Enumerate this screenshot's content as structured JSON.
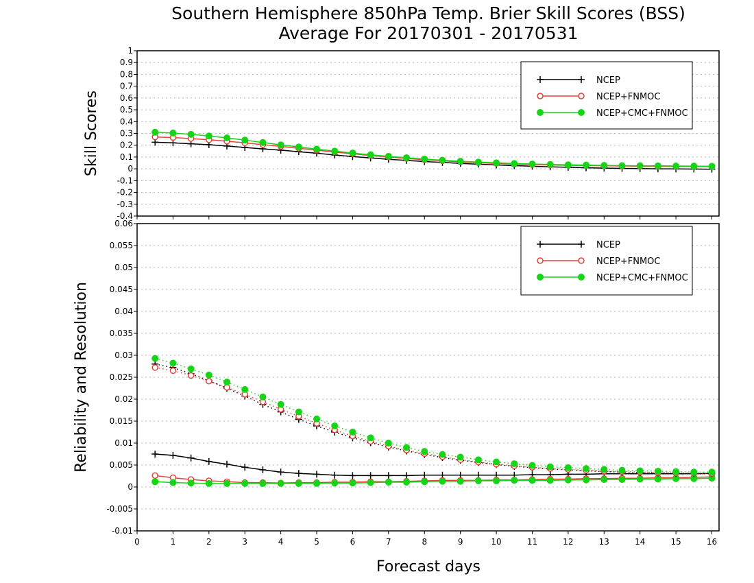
{
  "title": "Southern Hemisphere 850hPa Temp. Brier Skill Scores (BSS)",
  "subtitle": "Average For 20170301 - 20170531",
  "xlabel": "Forecast days",
  "colors": {
    "NCEP": "#000000",
    "NCEP+FNMOC": "#e8403a",
    "NCEP+CMC+FNMOC": "#16d416"
  },
  "chart_data": [
    {
      "type": "line",
      "ylabel": "Skill Scores",
      "xlim": [
        0,
        16.2
      ],
      "ylim": [
        -0.4,
        1
      ],
      "grid": true,
      "legend_position": "top-right",
      "xticks": [
        0,
        1,
        2,
        3,
        4,
        5,
        6,
        7,
        8,
        9,
        10,
        11,
        12,
        13,
        14,
        15,
        16
      ],
      "xtick_labels": [
        "0",
        "1",
        "2",
        "3",
        "4",
        "5",
        "6",
        "7",
        "8",
        "9",
        "10",
        "11",
        "12",
        "13",
        "14",
        "15",
        "16"
      ],
      "yticks": [
        -0.4,
        -0.3,
        -0.2,
        -0.1,
        0,
        0.1,
        0.2,
        0.3,
        0.4,
        0.5,
        0.6,
        0.7,
        0.8,
        0.9,
        1
      ],
      "ytick_labels": [
        "-0.4",
        "-0.3",
        "-0.2",
        "-0.1",
        "0",
        "0.1",
        "0.2",
        "0.3",
        "0.4",
        "0.5",
        "0.6",
        "0.7",
        "0.8",
        "0.9",
        "1"
      ],
      "x": [
        0.5,
        1,
        1.5,
        2,
        2.5,
        3,
        3.5,
        4,
        4.5,
        5,
        5.5,
        6,
        6.5,
        7,
        7.5,
        8,
        8.5,
        9,
        9.5,
        10,
        10.5,
        11,
        11.5,
        12,
        12.5,
        13,
        13.5,
        14,
        14.5,
        15,
        15.5,
        16
      ],
      "series": [
        {
          "name": "NCEP",
          "marker": "plus",
          "values": [
            0.225,
            0.22,
            0.212,
            0.204,
            0.193,
            0.181,
            0.169,
            0.158,
            0.145,
            0.132,
            0.117,
            0.104,
            0.092,
            0.081,
            0.071,
            0.062,
            0.054,
            0.046,
            0.039,
            0.033,
            0.027,
            0.022,
            0.017,
            0.013,
            0.009,
            0.006,
            0.004,
            0.002,
            0.0,
            -0.001,
            -0.002,
            -0.003
          ]
        },
        {
          "name": "NCEP+FNMOC",
          "marker": "open-circle",
          "values": [
            0.27,
            0.265,
            0.256,
            0.246,
            0.234,
            0.22,
            0.205,
            0.19,
            0.174,
            0.158,
            0.142,
            0.127,
            0.113,
            0.1,
            0.088,
            0.077,
            0.068,
            0.059,
            0.052,
            0.046,
            0.04,
            0.036,
            0.033,
            0.03,
            0.028,
            0.026,
            0.024,
            0.022,
            0.021,
            0.02,
            0.019,
            0.018
          ]
        },
        {
          "name": "NCEP+CMC+FNMOC",
          "marker": "filled-circle",
          "values": [
            0.31,
            0.303,
            0.292,
            0.278,
            0.262,
            0.243,
            0.223,
            0.203,
            0.185,
            0.167,
            0.15,
            0.134,
            0.119,
            0.106,
            0.094,
            0.083,
            0.073,
            0.064,
            0.057,
            0.051,
            0.045,
            0.041,
            0.037,
            0.034,
            0.032,
            0.029,
            0.027,
            0.026,
            0.025,
            0.024,
            0.023,
            0.022
          ]
        }
      ]
    },
    {
      "type": "line",
      "ylabel": "Reliability and Resolution",
      "xlim": [
        0,
        16.2
      ],
      "ylim": [
        -0.01,
        0.06
      ],
      "grid": true,
      "legend_position": "top-right",
      "xticks": [
        0,
        1,
        2,
        3,
        4,
        5,
        6,
        7,
        8,
        9,
        10,
        11,
        12,
        13,
        14,
        15,
        16
      ],
      "xtick_labels": [
        "0",
        "1",
        "2",
        "3",
        "4",
        "5",
        "6",
        "7",
        "8",
        "9",
        "10",
        "11",
        "12",
        "13",
        "14",
        "15",
        "16"
      ],
      "yticks": [
        -0.01,
        -0.005,
        0,
        0.005,
        0.01,
        0.015,
        0.02,
        0.025,
        0.03,
        0.035,
        0.04,
        0.045,
        0.05,
        0.055,
        0.06
      ],
      "ytick_labels": [
        "-0.01",
        "-0.005",
        "0",
        "0.005",
        "0.01",
        "0.015",
        "0.02",
        "0.025",
        "0.03",
        "0.035",
        "0.04",
        "0.045",
        "0.05",
        "0.055",
        "0.06"
      ],
      "x": [
        0.5,
        1,
        1.5,
        2,
        2.5,
        3,
        3.5,
        4,
        4.5,
        5,
        5.5,
        6,
        6.5,
        7,
        7.5,
        8,
        8.5,
        9,
        9.5,
        10,
        10.5,
        11,
        11.5,
        12,
        12.5,
        13,
        13.5,
        14,
        14.5,
        15,
        15.5,
        16
      ],
      "series": [
        {
          "name": "NCEP",
          "kind": "reliability",
          "style": "solid",
          "marker": "plus",
          "values": [
            0.0075,
            0.0072,
            0.0066,
            0.0058,
            0.0052,
            0.0045,
            0.0039,
            0.0034,
            0.0031,
            0.0029,
            0.0027,
            0.0026,
            0.0026,
            0.0026,
            0.0026,
            0.0027,
            0.0027,
            0.0027,
            0.0027,
            0.0027,
            0.0027,
            0.0028,
            0.0028,
            0.0029,
            0.0029,
            0.003,
            0.003,
            0.003,
            0.003,
            0.003,
            0.003,
            0.0031
          ]
        },
        {
          "name": "NCEP+FNMOC",
          "kind": "reliability",
          "style": "solid",
          "marker": "open-circle",
          "values": [
            0.0026,
            0.0021,
            0.0017,
            0.0014,
            0.0012,
            0.001,
            0.001,
            0.0009,
            0.001,
            0.001,
            0.0011,
            0.0011,
            0.0012,
            0.0012,
            0.0013,
            0.0014,
            0.0015,
            0.0015,
            0.0015,
            0.0016,
            0.0016,
            0.0017,
            0.0018,
            0.0018,
            0.0019,
            0.0019,
            0.002,
            0.002,
            0.0021,
            0.0021,
            0.0022,
            0.0023
          ]
        },
        {
          "name": "NCEP+CMC+FNMOC",
          "kind": "reliability",
          "style": "solid",
          "marker": "filled-circle",
          "values": [
            0.0012,
            0.001,
            0.0009,
            0.0008,
            0.0008,
            0.0008,
            0.0008,
            0.0008,
            0.0008,
            0.0008,
            0.0009,
            0.0009,
            0.001,
            0.0011,
            0.0011,
            0.0012,
            0.0013,
            0.0013,
            0.0014,
            0.0014,
            0.0015,
            0.0015,
            0.0015,
            0.0016,
            0.0016,
            0.0017,
            0.0017,
            0.0018,
            0.0018,
            0.0019,
            0.0019,
            0.002
          ]
        },
        {
          "name": "NCEP",
          "kind": "resolution",
          "style": "dotted",
          "marker": "plus",
          "values": [
            0.028,
            0.0272,
            0.0258,
            0.0242,
            0.0225,
            0.0207,
            0.0188,
            0.0171,
            0.0154,
            0.0139,
            0.0125,
            0.0112,
            0.0101,
            0.0091,
            0.0082,
            0.0074,
            0.0067,
            0.0061,
            0.0056,
            0.0051,
            0.0047,
            0.0044,
            0.0041,
            0.0039,
            0.0037,
            0.0035,
            0.0034,
            0.0033,
            0.0032,
            0.0031,
            0.003,
            0.003
          ]
        },
        {
          "name": "NCEP+FNMOC",
          "kind": "resolution",
          "style": "dotted",
          "marker": "open-circle",
          "values": [
            0.0272,
            0.0265,
            0.0254,
            0.0241,
            0.0227,
            0.0211,
            0.0194,
            0.0177,
            0.0161,
            0.0145,
            0.013,
            0.0116,
            0.0104,
            0.0093,
            0.0084,
            0.0076,
            0.0069,
            0.0062,
            0.0057,
            0.0052,
            0.0048,
            0.0045,
            0.0042,
            0.004,
            0.0038,
            0.0036,
            0.0035,
            0.0034,
            0.0033,
            0.0032,
            0.0032,
            0.0031
          ]
        },
        {
          "name": "NCEP+CMC+FNMOC",
          "kind": "resolution",
          "style": "dotted",
          "marker": "filled-circle",
          "values": [
            0.0293,
            0.0282,
            0.0269,
            0.0255,
            0.0239,
            0.0222,
            0.0205,
            0.0188,
            0.0171,
            0.0155,
            0.0139,
            0.0125,
            0.0112,
            0.01,
            0.009,
            0.0081,
            0.0074,
            0.0068,
            0.0062,
            0.0057,
            0.0053,
            0.0049,
            0.0046,
            0.0044,
            0.0042,
            0.004,
            0.0038,
            0.0037,
            0.0036,
            0.0035,
            0.0034,
            0.0034
          ]
        }
      ]
    }
  ],
  "legends": [
    {
      "entries": [
        {
          "label": "NCEP",
          "series": "NCEP"
        },
        {
          "label": "NCEP+FNMOC",
          "series": "NCEP+FNMOC"
        },
        {
          "label": "NCEP+CMC+FNMOC",
          "series": "NCEP+CMC+FNMOC"
        }
      ]
    },
    {
      "entries": [
        {
          "label": "NCEP",
          "series": "NCEP"
        },
        {
          "label": "NCEP+FNMOC",
          "series": "NCEP+FNMOC"
        },
        {
          "label": "NCEP+CMC+FNMOC",
          "series": "NCEP+CMC+FNMOC"
        }
      ]
    }
  ]
}
